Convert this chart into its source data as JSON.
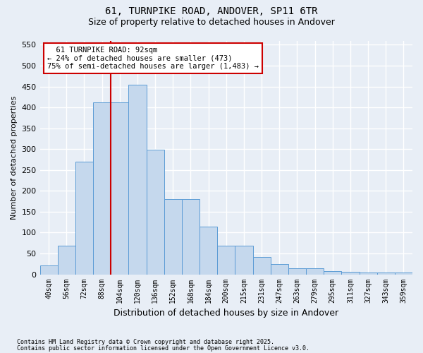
{
  "title1": "61, TURNPIKE ROAD, ANDOVER, SP11 6TR",
  "title2": "Size of property relative to detached houses in Andover",
  "xlabel": "Distribution of detached houses by size in Andover",
  "ylabel": "Number of detached properties",
  "footer1": "Contains HM Land Registry data © Crown copyright and database right 2025.",
  "footer2": "Contains public sector information licensed under the Open Government Licence v3.0.",
  "categories": [
    "40sqm",
    "56sqm",
    "72sqm",
    "88sqm",
    "104sqm",
    "120sqm",
    "136sqm",
    "152sqm",
    "168sqm",
    "184sqm",
    "200sqm",
    "215sqm",
    "231sqm",
    "247sqm",
    "263sqm",
    "279sqm",
    "295sqm",
    "311sqm",
    "327sqm",
    "343sqm",
    "359sqm"
  ],
  "values": [
    22,
    68,
    270,
    412,
    412,
    455,
    298,
    180,
    180,
    115,
    68,
    68,
    42,
    25,
    14,
    14,
    8,
    6,
    4,
    4,
    4
  ],
  "bar_color": "#c5d8ed",
  "bar_edge_color": "#5b9bd5",
  "bg_color": "#e8eef6",
  "grid_color": "#ffffff",
  "property_label": "61 TURNPIKE ROAD: 92sqm",
  "pct_smaller": "← 24% of detached houses are smaller (473)",
  "pct_larger": "75% of semi-detached houses are larger (1,483) →",
  "vline_x": 3.5,
  "vline_color": "#cc0000",
  "ann_box_edgecolor": "#cc0000",
  "ylim": [
    0,
    560
  ],
  "yticks": [
    0,
    50,
    100,
    150,
    200,
    250,
    300,
    350,
    400,
    450,
    500,
    550
  ]
}
